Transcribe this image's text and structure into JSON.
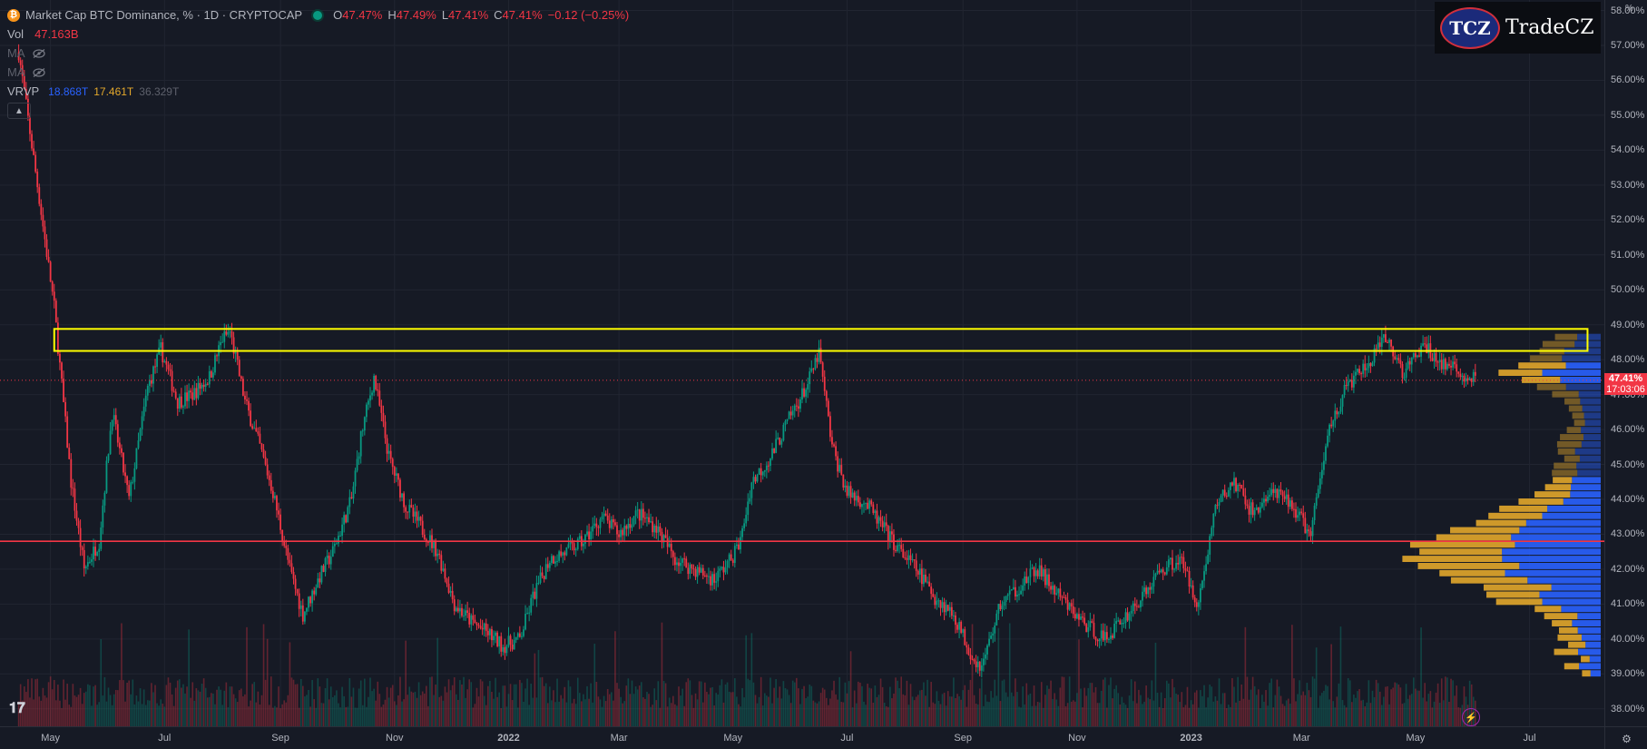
{
  "legend": {
    "coin_icon": "bitcoin-icon",
    "symbol_name": "Market Cap BTC Dominance, % · 1D · CRYPTOCAP",
    "ohlc": {
      "o_label": "O",
      "o_value": "47.47%",
      "h_label": "H",
      "h_value": "47.49%",
      "l_label": "L",
      "l_value": "47.41%",
      "c_label": "C",
      "c_value": "47.41%",
      "change": "−0.12 (−0.25%)"
    },
    "vol": {
      "label": "Vol",
      "value": "47.163B"
    },
    "ma1": {
      "label": "MA"
    },
    "ma2": {
      "label": "MA"
    },
    "vrvp": {
      "label": "VRVP",
      "up": "18.868T",
      "down": "17.461T",
      "total": "36.329T"
    },
    "collapse_icon": "chevron-up-icon"
  },
  "logo": {
    "badge": "TCZ",
    "word": "TradeCZ"
  },
  "price_tag": {
    "value": "47.41%",
    "countdown": "17:03:06"
  },
  "corner_icon": "gear-icon",
  "chart_data": {
    "type": "line",
    "title": "Market Cap BTC Dominance, %",
    "y_unit": "%",
    "ylim": [
      37.5,
      58.3
    ],
    "y_ticks": [
      "58.00%",
      "57.00%",
      "56.00%",
      "55.00%",
      "54.00%",
      "53.00%",
      "52.00%",
      "51.00%",
      "50.00%",
      "49.00%",
      "48.00%",
      "47.00%",
      "46.00%",
      "45.00%",
      "44.00%",
      "43.00%",
      "42.00%",
      "41.00%",
      "40.00%",
      "39.00%",
      "38.00%"
    ],
    "x_ticks": [
      "May",
      "Jul",
      "Sep",
      "Nov",
      "2022",
      "Mar",
      "May",
      "Jul",
      "Sep",
      "Nov",
      "2023",
      "Mar",
      "May",
      "Jul"
    ],
    "grid": true,
    "series": [
      {
        "x": [
          "2021-04-14",
          "2021-04-24",
          "2021-05-03",
          "2021-05-12",
          "2021-05-19",
          "2021-05-27",
          "2021-06-03",
          "2021-06-12",
          "2021-06-22",
          "2021-06-29",
          "2021-07-08",
          "2021-07-16",
          "2021-07-25",
          "2021-08-01",
          "2021-08-05",
          "2021-08-13",
          "2021-08-21",
          "2021-08-28",
          "2021-09-06",
          "2021-09-13",
          "2021-09-22",
          "2021-09-29",
          "2021-10-09",
          "2021-10-14",
          "2021-10-21",
          "2021-10-29",
          "2021-11-07",
          "2021-11-14",
          "2021-11-24",
          "2021-12-03",
          "2021-12-12",
          "2021-12-20",
          "2021-12-29",
          "2022-01-07",
          "2022-01-14",
          "2022-01-23",
          "2022-02-01",
          "2022-02-10",
          "2022-02-20",
          "2022-03-01",
          "2022-03-11",
          "2022-03-21",
          "2022-03-31",
          "2022-04-10",
          "2022-04-21",
          "2022-04-30",
          "2022-05-05",
          "2022-05-11",
          "2022-05-21",
          "2022-05-31",
          "2022-06-10",
          "2022-06-16",
          "2022-06-23",
          "2022-07-01",
          "2022-07-11",
          "2022-07-20",
          "2022-07-28",
          "2022-08-07",
          "2022-08-17",
          "2022-08-27",
          "2022-09-06",
          "2022-09-11",
          "2022-09-21",
          "2022-10-01",
          "2022-10-11",
          "2022-10-21",
          "2022-10-31",
          "2022-11-08",
          "2022-11-16",
          "2022-11-26",
          "2022-12-06",
          "2022-12-16",
          "2022-12-26",
          "2023-01-05",
          "2023-01-14",
          "2023-01-24",
          "2023-02-03",
          "2023-02-13",
          "2023-02-23",
          "2023-03-06",
          "2023-03-16",
          "2023-03-26",
          "2023-04-05",
          "2023-04-15",
          "2023-04-25",
          "2023-05-05",
          "2023-05-15",
          "2023-05-25",
          "2023-06-02"
        ],
        "y": [
          56.8,
          53.0,
          49.5,
          44.5,
          42.0,
          42.8,
          46.5,
          44.0,
          47.2,
          48.3,
          46.8,
          47.0,
          47.5,
          48.6,
          48.8,
          46.8,
          45.5,
          44.2,
          42.0,
          40.7,
          41.8,
          42.5,
          44.0,
          45.8,
          47.5,
          45.2,
          43.8,
          43.3,
          42.5,
          41.0,
          40.5,
          40.2,
          39.8,
          40.0,
          41.2,
          42.3,
          42.5,
          42.8,
          43.5,
          43.0,
          43.6,
          43.2,
          42.3,
          42.0,
          41.7,
          42.3,
          42.8,
          44.5,
          45.2,
          46.3,
          47.3,
          48.2,
          45.5,
          44.2,
          43.9,
          43.2,
          42.6,
          42.0,
          41.2,
          40.7,
          39.5,
          39.2,
          41.0,
          41.5,
          42.0,
          41.3,
          40.7,
          40.3,
          40.0,
          40.6,
          41.2,
          42.0,
          42.3,
          41.0,
          43.8,
          44.5,
          43.6,
          44.2,
          43.9,
          43.0,
          46.1,
          47.3,
          47.8,
          48.6,
          47.6,
          48.4,
          47.9,
          47.6,
          47.41
        ]
      }
    ],
    "volume_profile": {
      "label": "VRVP",
      "up_total": "18.868T",
      "down_total": "17.461T"
    },
    "annotations": [
      {
        "type": "rectangle",
        "color": "#ffff00",
        "y_range": [
          48.25,
          48.88
        ],
        "x_range": [
          "2021-05-03",
          "2023-08-01"
        ]
      },
      {
        "type": "horizontal_line",
        "color": "#f23645",
        "y": 42.8
      },
      {
        "type": "dotted_price_line",
        "color": "#f23645",
        "y": 47.41
      }
    ]
  },
  "colors": {
    "up": "#089981",
    "down": "#f23645",
    "vp_up": "#2962ff",
    "vp_down": "#e2a72b",
    "zone": "#ffff00",
    "grid": "#212531"
  }
}
